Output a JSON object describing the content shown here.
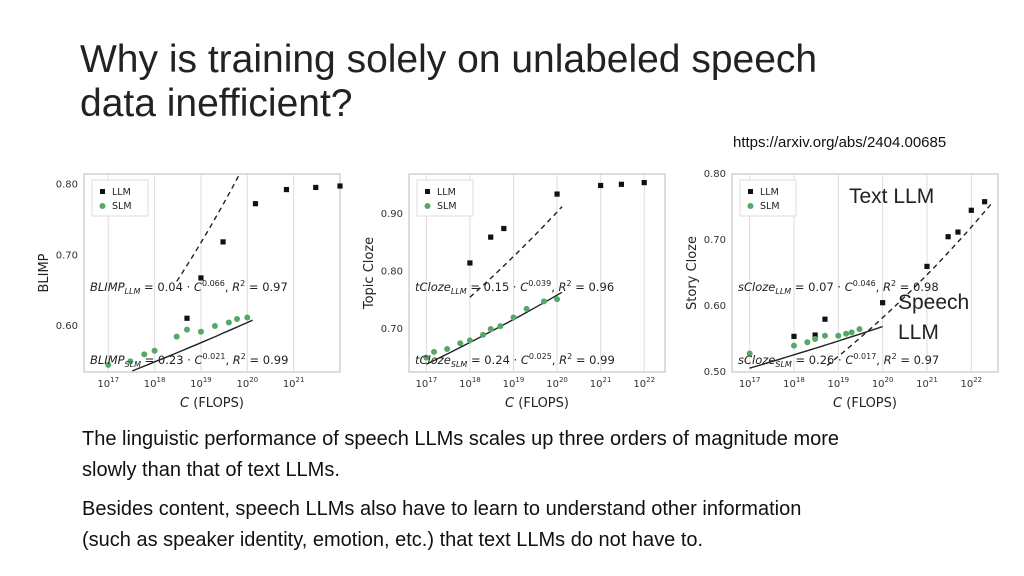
{
  "slide": {
    "title_line1": "Why is training solely on unlabeled speech",
    "title_line2": "data inefficient?",
    "url": "https://arxiv.org/abs/2404.00685",
    "annotation_text": "Text LLM",
    "annotation_speech_1": "Speech",
    "annotation_speech_2": "LLM",
    "para1_line1": "The linguistic performance of speech LLMs scales up three orders of magnitude more",
    "para1_line2": "slowly than that of text LLMs.",
    "para2_line1": "Besides content, speech LLMs also have to learn to understand other information",
    "para2_line2": "(such as speaker identity, emotion, etc.) that text LLMs do not have to."
  },
  "colors": {
    "llm": "#111111",
    "slm": "#55a868",
    "grid": "#dddddd",
    "frame": "#bbbbbb"
  },
  "chart_data": [
    {
      "type": "scatter",
      "xlabel": "C (FLOPS)",
      "ylabel": "BLIMP",
      "x_scale": "log",
      "x_ticks": [
        1e+17,
        1e+18,
        1e+19,
        1e+20,
        1e+21
      ],
      "x_tick_labels": [
        "10^17",
        "10^18",
        "10^19",
        "10^20",
        "10^21"
      ],
      "xlim": [
        3e+16,
        1e+22
      ],
      "ylim": [
        0.535,
        0.815
      ],
      "y_ticks": [
        0.6,
        0.7,
        0.8
      ],
      "y_tick_labels": [
        "0.60",
        "0.70",
        "0.80"
      ],
      "legend": {
        "position": "top-left",
        "entries": [
          "LLM",
          "SLM"
        ]
      },
      "series": [
        {
          "name": "LLM",
          "x": [
            5e+18,
            1e+19,
            3e+19,
            1.5e+20,
            7e+20,
            3e+21,
            1e+22
          ],
          "y": [
            0.611,
            0.668,
            0.719,
            0.773,
            0.793,
            0.796,
            0.798
          ]
        },
        {
          "name": "SLM",
          "x": [
            1e+17,
            3e+17,
            6e+17,
            1e+18,
            3e+18,
            5e+18,
            1e+19,
            2e+19,
            4e+19,
            6e+19,
            1e+20
          ],
          "y": [
            0.545,
            0.55,
            0.56,
            0.565,
            0.585,
            0.595,
            0.592,
            0.6,
            0.605,
            0.61,
            0.612
          ]
        }
      ],
      "fits": {
        "LLM": {
          "coef": 0.04,
          "exp": 0.066
        },
        "SLM": {
          "coef": 0.23,
          "exp": 0.021
        }
      },
      "fit_ranges": {
        "LLM": [
          3e+18,
          3e+20
        ],
        "SLM": [
          1e+17,
          1.3e+20
        ]
      },
      "annotations": {
        "LLM": {
          "prefix": "BLIMP",
          "coef": "0.04",
          "exp": "0.066",
          "r2": "0.97"
        },
        "SLM": {
          "prefix": "BLIMP",
          "coef": "0.23",
          "exp": "0.021",
          "r2": "0.99"
        }
      },
      "annotation_positions": {
        "LLM": "middle",
        "SLM": "bottom"
      }
    },
    {
      "type": "scatter",
      "xlabel": "C (FLOPS)",
      "ylabel": "Topic Cloze",
      "x_scale": "log",
      "x_ticks": [
        1e+17,
        1e+18,
        1e+19,
        1e+20,
        1e+21,
        1e+22
      ],
      "x_tick_labels": [
        "10^17",
        "10^18",
        "10^19",
        "10^20",
        "10^21",
        "10^22"
      ],
      "xlim": [
        4e+16,
        3e+22
      ],
      "ylim": [
        0.625,
        0.97
      ],
      "y_ticks": [
        0.7,
        0.8,
        0.9
      ],
      "y_tick_labels": [
        "0.70",
        "0.80",
        "0.90"
      ],
      "legend": {
        "position": "top-left",
        "entries": [
          "LLM",
          "SLM"
        ]
      },
      "series": [
        {
          "name": "LLM",
          "x": [
            1e+18,
            3e+18,
            6e+18,
            1e+20,
            1e+21,
            3e+21,
            1e+22
          ],
          "y": [
            0.815,
            0.86,
            0.875,
            0.935,
            0.95,
            0.952,
            0.955
          ]
        },
        {
          "name": "SLM",
          "x": [
            1e+17,
            1.5e+17,
            3e+17,
            6e+17,
            1e+18,
            2e+18,
            3e+18,
            5e+18,
            1e+19,
            2e+19,
            5e+19,
            1e+20
          ],
          "y": [
            0.65,
            0.66,
            0.665,
            0.675,
            0.68,
            0.69,
            0.7,
            0.705,
            0.72,
            0.735,
            0.748,
            0.752
          ]
        }
      ],
      "fits": {
        "LLM": {
          "coef": 0.15,
          "exp": 0.039
        },
        "SLM": {
          "coef": 0.24,
          "exp": 0.025
        }
      },
      "fit_ranges": {
        "LLM": [
          1e+18,
          1.3e+20
        ],
        "SLM": [
          1e+17,
          1.3e+20
        ]
      },
      "annotations": {
        "LLM": {
          "prefix": "tCloze",
          "coef": "0.15",
          "exp": "0.039",
          "r2": "0.96"
        },
        "SLM": {
          "prefix": "tCloze",
          "coef": "0.24",
          "exp": "0.025",
          "r2": "0.99"
        }
      },
      "annotation_positions": {
        "LLM": "middle",
        "SLM": "bottom"
      }
    },
    {
      "type": "scatter",
      "xlabel": "C (FLOPS)",
      "ylabel": "Story Cloze",
      "x_scale": "log",
      "x_ticks": [
        1e+17,
        1e+18,
        1e+19,
        1e+20,
        1e+21,
        1e+22
      ],
      "x_tick_labels": [
        "10^17",
        "10^18",
        "10^19",
        "10^20",
        "10^21",
        "10^22"
      ],
      "xlim": [
        4e+16,
        4e+22
      ],
      "ylim": [
        0.5,
        0.8
      ],
      "y_ticks": [
        0.5,
        0.6,
        0.7,
        0.8
      ],
      "y_tick_labels": [
        "0.50",
        "0.60",
        "0.70",
        "0.80"
      ],
      "legend": {
        "position": "top-left",
        "entries": [
          "LLM",
          "SLM"
        ]
      },
      "series": [
        {
          "name": "LLM",
          "x": [
            1e+18,
            3e+18,
            5e+18,
            1e+20,
            1e+21,
            3e+21,
            5e+21,
            1e+22,
            2e+22
          ],
          "y": [
            0.554,
            0.556,
            0.58,
            0.605,
            0.66,
            0.705,
            0.712,
            0.745,
            0.758
          ]
        },
        {
          "name": "SLM",
          "x": [
            1e+17,
            1e+18,
            2e+18,
            3e+18,
            5e+18,
            1e+19,
            1.5e+19,
            2e+19,
            3e+19
          ],
          "y": [
            0.528,
            0.54,
            0.545,
            0.55,
            0.555,
            0.555,
            0.558,
            0.56,
            0.565
          ]
        }
      ],
      "fits": {
        "LLM": {
          "coef": 0.07,
          "exp": 0.046
        },
        "SLM": {
          "coef": 0.26,
          "exp": 0.017
        }
      },
      "fit_ranges": {
        "LLM": [
          1e+18,
          3e+22
        ],
        "SLM": [
          1e+17,
          1e+20
        ]
      },
      "annotations": {
        "LLM": {
          "prefix": "sCloze",
          "coef": "0.07",
          "exp": "0.046",
          "r2": "0.98"
        },
        "SLM": {
          "prefix": "sCloze",
          "coef": "0.26",
          "exp": "0.017",
          "r2": "0.97"
        }
      },
      "annotation_positions": {
        "LLM": "middle",
        "SLM": "bottom"
      }
    }
  ]
}
